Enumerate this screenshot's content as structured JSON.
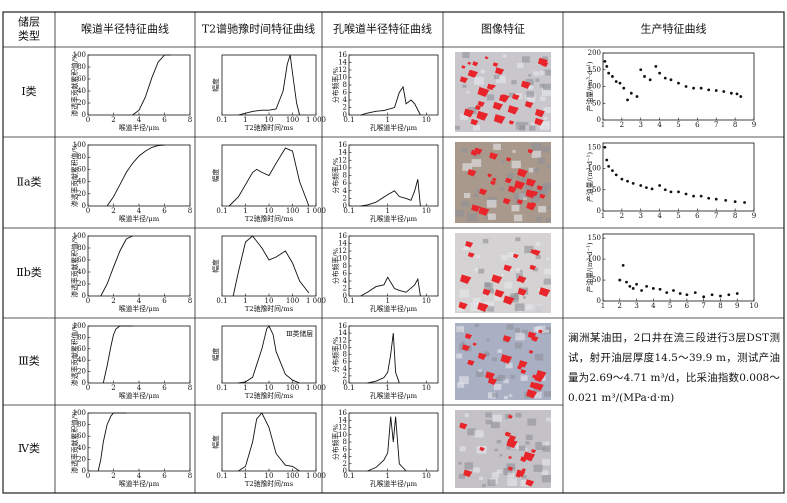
{
  "header": [
    [
      "储层",
      "类型"
    ],
    "喉道半径特征曲线",
    "T2谱驰豫时间特征曲线",
    "孔喉道半径特征曲线",
    "图像特征",
    "生产特征曲线"
  ],
  "axes": {
    "throat": {
      "xlim": [
        0,
        8
      ],
      "ylim": [
        0,
        100
      ],
      "xticks": [
        0,
        2,
        4,
        6,
        8
      ],
      "yticks": [
        0,
        20,
        40,
        60,
        80,
        100
      ],
      "xlabel": "喉道半径/μm",
      "ylabel": "渗透率贡献累积值/%"
    },
    "t2": {
      "xscale": "log",
      "xlim": [
        0.1,
        1000
      ],
      "ylim": [
        0,
        100
      ],
      "xticks": [
        0.1,
        1,
        10,
        100,
        {
          "value": 1000,
          "label": "1 000"
        }
      ],
      "xlabel": "T2驰豫时间/ms",
      "ylabel": "幅度"
    },
    "pore": {
      "xscale": "log",
      "xlim": [
        0.1,
        20
      ],
      "ylim": [
        0,
        16
      ],
      "xticks": [
        0.1,
        1,
        10
      ],
      "yticks": [
        0,
        2,
        4,
        6,
        8,
        10,
        12,
        14,
        16
      ],
      "xlabel": "孔喉道半径/μm",
      "ylabel": "分布频率/%"
    },
    "production": {
      "ylabel": "产油量/(m³·d⁻¹)"
    }
  },
  "rows": [
    {
      "label": "Ⅰ类",
      "throat": {
        "x": [
          3.5,
          4,
          4.5,
          5,
          5.5,
          6,
          6.5
        ],
        "y": [
          0,
          8,
          30,
          62,
          88,
          100,
          100
        ]
      },
      "t2": {
        "x": [
          0.5,
          1,
          2,
          5,
          10,
          20,
          40,
          60,
          80,
          100,
          150,
          200
        ],
        "y": [
          0,
          3,
          6,
          8,
          8,
          10,
          40,
          85,
          100,
          70,
          20,
          0
        ]
      },
      "pore": {
        "x": [
          0.2,
          0.3,
          0.5,
          0.8,
          1,
          1.5,
          2,
          2.5,
          3,
          4,
          5,
          7
        ],
        "y": [
          0,
          0.5,
          1,
          1.2,
          1.5,
          2,
          6,
          7.5,
          3,
          4,
          3,
          0
        ]
      },
      "production": {
        "xlim": [
          1,
          9
        ],
        "ylim": [
          0,
          200
        ],
        "xticks": [
          1,
          2,
          3,
          4,
          5,
          6,
          7,
          8,
          9
        ],
        "yticks": [
          0,
          50,
          100,
          150,
          200
        ],
        "x": [
          1.1,
          1.2,
          1.3,
          1.5,
          1.7,
          1.9,
          2.1,
          2.3,
          2.5,
          2.8,
          3,
          3.2,
          3.5,
          3.8,
          4,
          4.3,
          4.6,
          5,
          5.4,
          5.8,
          6.2,
          6.6,
          7,
          7.4,
          7.8,
          8.1,
          8.3
        ],
        "y": [
          175,
          160,
          140,
          130,
          115,
          110,
          95,
          60,
          80,
          70,
          150,
          130,
          120,
          160,
          140,
          125,
          120,
          110,
          100,
          95,
          95,
          90,
          88,
          85,
          80,
          78,
          70
        ]
      }
    },
    {
      "label": "Ⅱa类",
      "throat": {
        "x": [
          1.5,
          2,
          2.5,
          3,
          3.5,
          4,
          4.5,
          5,
          5.5,
          6
        ],
        "y": [
          0,
          15,
          35,
          55,
          70,
          82,
          90,
          96,
          99,
          100
        ]
      },
      "t2": {
        "x": [
          0.2,
          0.5,
          1,
          2,
          3,
          5,
          10,
          20,
          50,
          100,
          200,
          500
        ],
        "y": [
          0,
          15,
          35,
          55,
          60,
          55,
          50,
          70,
          95,
          90,
          40,
          0
        ]
      },
      "pore": {
        "x": [
          0.2,
          0.3,
          0.5,
          1,
          1.5,
          2,
          3,
          4,
          5,
          6,
          7
        ],
        "y": [
          0,
          0.3,
          1,
          3,
          4,
          2.5,
          2,
          1.5,
          4,
          7,
          0
        ]
      },
      "production": {
        "xlim": [
          1,
          9
        ],
        "ylim": [
          0,
          160
        ],
        "xticks": [
          1,
          2,
          3,
          4,
          5,
          6,
          7,
          8,
          9
        ],
        "yticks": [
          0,
          50,
          100,
          150
        ],
        "x": [
          1.1,
          1.2,
          1.3,
          1.5,
          1.7,
          2,
          2.3,
          2.6,
          3,
          3.3,
          3.6,
          4,
          4.3,
          4.6,
          5,
          5.4,
          5.8,
          6.2,
          6.6,
          7,
          7.5,
          8,
          8.5
        ],
        "y": [
          150,
          120,
          105,
          95,
          85,
          75,
          70,
          65,
          60,
          55,
          52,
          60,
          50,
          45,
          45,
          40,
          35,
          35,
          30,
          28,
          25,
          22,
          20
        ]
      }
    },
    {
      "label": "Ⅱb类",
      "throat": {
        "x": [
          1,
          1.5,
          2,
          2.5,
          3,
          3.5
        ],
        "y": [
          0,
          20,
          48,
          75,
          95,
          100
        ]
      },
      "t2": {
        "x": [
          0.3,
          0.5,
          1,
          2,
          5,
          10,
          20,
          50,
          100,
          200,
          500
        ],
        "y": [
          0,
          40,
          90,
          100,
          80,
          60,
          65,
          75,
          55,
          25,
          5
        ]
      },
      "pore": {
        "x": [
          0.2,
          0.3,
          0.5,
          0.8,
          1,
          1.5,
          2,
          3,
          5,
          6,
          7
        ],
        "y": [
          0,
          1,
          2.5,
          3,
          5,
          2,
          1.5,
          1,
          3,
          4.5,
          0
        ]
      },
      "production": {
        "xlim": [
          1,
          10
        ],
        "ylim": [
          0,
          160
        ],
        "xticks": [
          1,
          2,
          3,
          4,
          5,
          6,
          7,
          8,
          9,
          10
        ],
        "yticks": [
          0,
          50,
          100,
          150
        ],
        "x": [
          2,
          2.2,
          2.4,
          2.6,
          2.8,
          3,
          3.3,
          3.6,
          4,
          4.4,
          4.8,
          5.2,
          5.6,
          6,
          6.5,
          7,
          7.5,
          8,
          8.5,
          9
        ],
        "y": [
          50,
          85,
          45,
          35,
          30,
          40,
          25,
          35,
          30,
          28,
          20,
          25,
          18,
          15,
          20,
          10,
          15,
          12,
          15,
          18
        ]
      }
    },
    {
      "label": "Ⅲ类",
      "throat": {
        "x": [
          1.2,
          1.5,
          1.8,
          2,
          2.2,
          2.5,
          3.5
        ],
        "y": [
          0,
          30,
          65,
          85,
          95,
          100,
          100
        ]
      },
      "t2": {
        "annotation": "Ⅲ类储层",
        "x": [
          0.5,
          1,
          2,
          5,
          8,
          10,
          15,
          20,
          50,
          100,
          200
        ],
        "y": [
          0,
          2,
          10,
          60,
          95,
          100,
          85,
          55,
          15,
          5,
          0
        ]
      },
      "pore": {
        "x": [
          0.3,
          0.5,
          0.8,
          1,
          1.2,
          1.4,
          1.6,
          2
        ],
        "y": [
          0,
          0.5,
          1.5,
          3,
          8,
          14,
          3,
          0
        ]
      }
    },
    {
      "label": "Ⅳ类",
      "throat": {
        "x": [
          0.8,
          1,
          1.2,
          1.5,
          1.8,
          2,
          3
        ],
        "y": [
          0,
          20,
          50,
          80,
          95,
          100,
          100
        ]
      },
      "t2": {
        "x": [
          0.5,
          1,
          2,
          3,
          5,
          10,
          20,
          50,
          100,
          200
        ],
        "y": [
          0,
          8,
          50,
          90,
          100,
          75,
          30,
          10,
          8,
          0
        ]
      },
      "pore": {
        "x": [
          0.3,
          0.5,
          0.8,
          1,
          1.2,
          1.4,
          1.6,
          2,
          3
        ],
        "y": [
          0,
          1,
          3,
          5,
          15,
          8,
          15,
          2,
          0
        ]
      }
    }
  ],
  "note": "澜洲某油田，2口井在流三段进行3层DST测试，射开油层厚度14.5～39.9 m，测试产油量为2.69～4.71 m³/d，比采油指数0.008～0.021 m³/(MPa·d·m)"
}
